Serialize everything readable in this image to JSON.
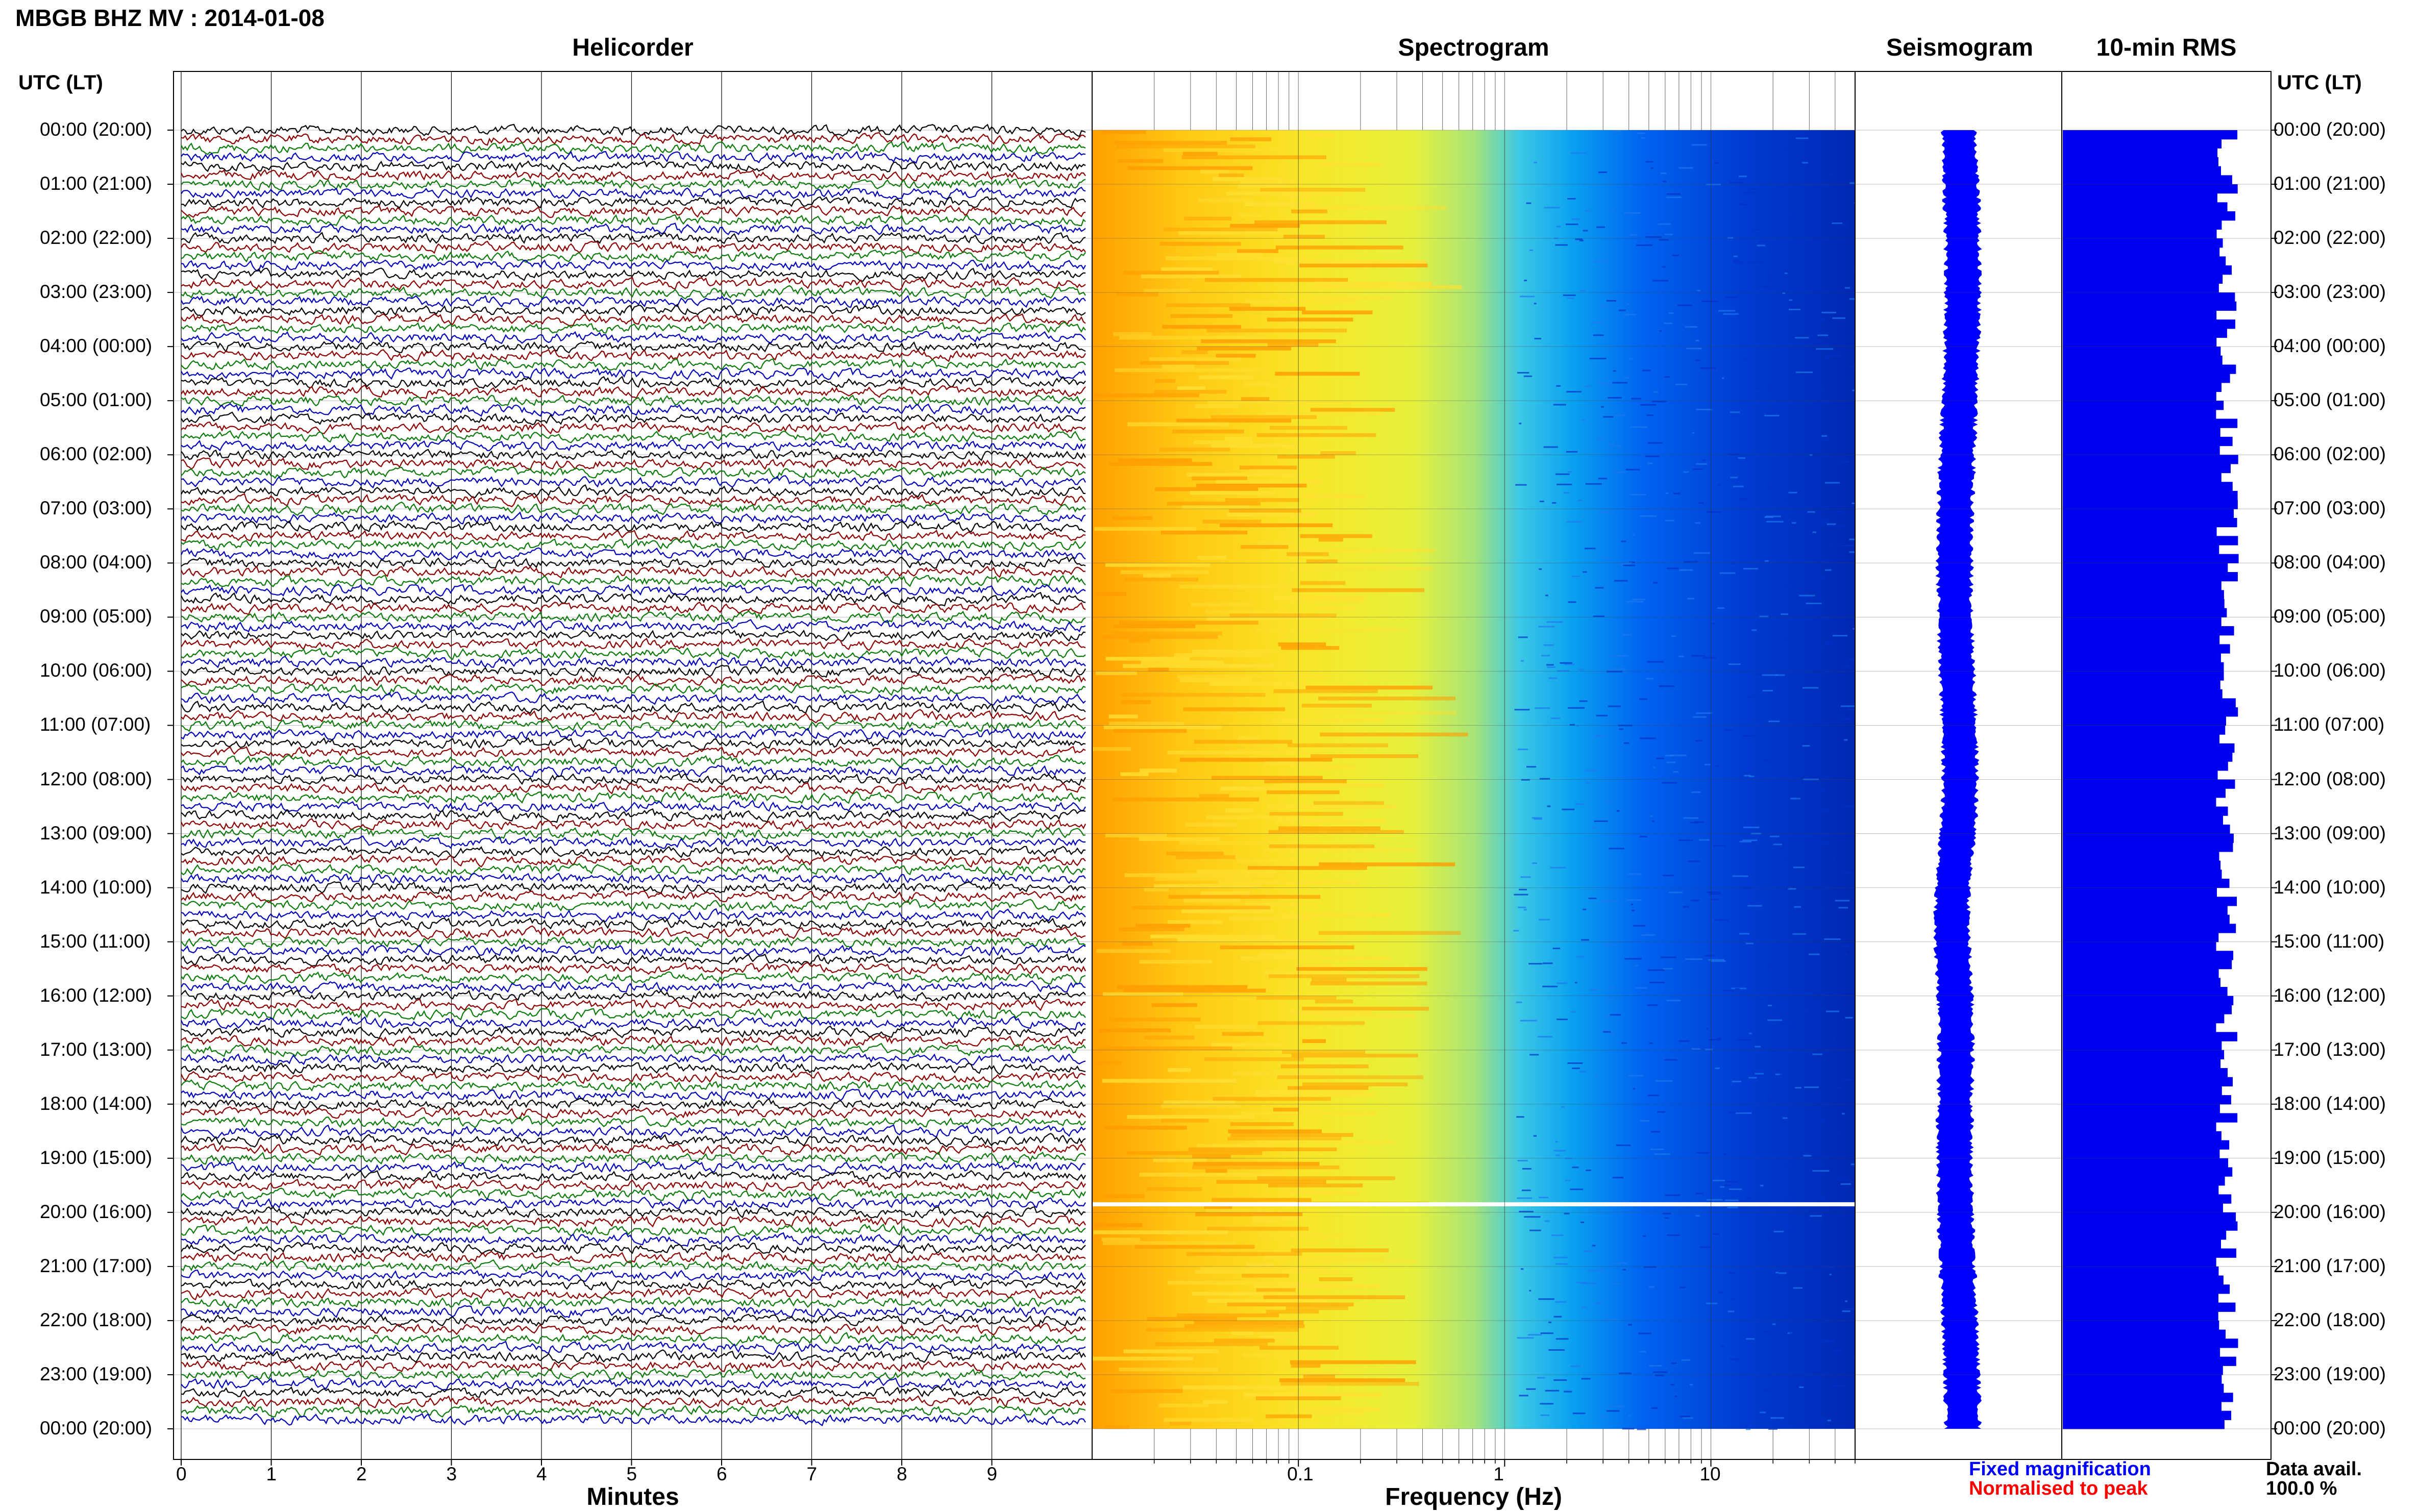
{
  "title": "MBGB BHZ MV : 2014-01-08",
  "colors": {
    "trace_cycle": [
      "#000000",
      "#8b0000",
      "#0b7a0b",
      "#0000b4"
    ],
    "fixed_magnification": "#0000ff",
    "normalised_to_peak": "#ff0000",
    "rms_bar": "#0000f0",
    "seismogram": "#0000ff"
  },
  "time_axis": {
    "header_left": "UTC (LT)",
    "header_right": "UTC (LT)",
    "labels": [
      "00:00 (20:00)",
      "01:00 (21:00)",
      "02:00 (22:00)",
      "03:00 (23:00)",
      "04:00 (00:00)",
      "05:00 (01:00)",
      "06:00 (02:00)",
      "07:00 (03:00)",
      "08:00 (04:00)",
      "09:00 (05:00)",
      "10:00 (06:00)",
      "11:00 (07:00)",
      "12:00 (08:00)",
      "13:00 (09:00)",
      "14:00 (10:00)",
      "15:00 (11:00)",
      "16:00 (12:00)",
      "17:00 (13:00)",
      "18:00 (14:00)",
      "19:00 (15:00)",
      "20:00 (16:00)",
      "21:00 (17:00)",
      "22:00 (18:00)",
      "23:00 (19:00)",
      "00:00 (20:00)"
    ]
  },
  "chart_data": [
    {
      "type": "line",
      "title": "Helicorder",
      "xlabel": "Minutes",
      "xlim": [
        0,
        10
      ],
      "x_ticks": [
        "0",
        "1",
        "2",
        "3",
        "4",
        "5",
        "6",
        "7",
        "8",
        "9"
      ],
      "ylim_hours": [
        0,
        24
      ],
      "rows": 144,
      "row_minutes": 10
    },
    {
      "type": "heatmap",
      "title": "Spectrogram",
      "xlabel": "Frequency (Hz)",
      "xscale": "log",
      "xlim": [
        0.01,
        50
      ],
      "x_ticks": [
        "0.1",
        "1",
        "10"
      ],
      "ylim_hours": [
        0,
        24
      ],
      "data_gap_hour": 19.85
    },
    {
      "type": "line",
      "title": "Seismogram",
      "ylim_hours": [
        0,
        24
      ]
    },
    {
      "type": "bar",
      "title": "10-min RMS",
      "ylim_hours": [
        0,
        24
      ],
      "bins": 144
    }
  ],
  "legend": {
    "fixed": "Fixed magnification",
    "normalised": "Normalised to peak"
  },
  "data_avail": {
    "label": "Data avail.",
    "value": "100.0 %"
  }
}
